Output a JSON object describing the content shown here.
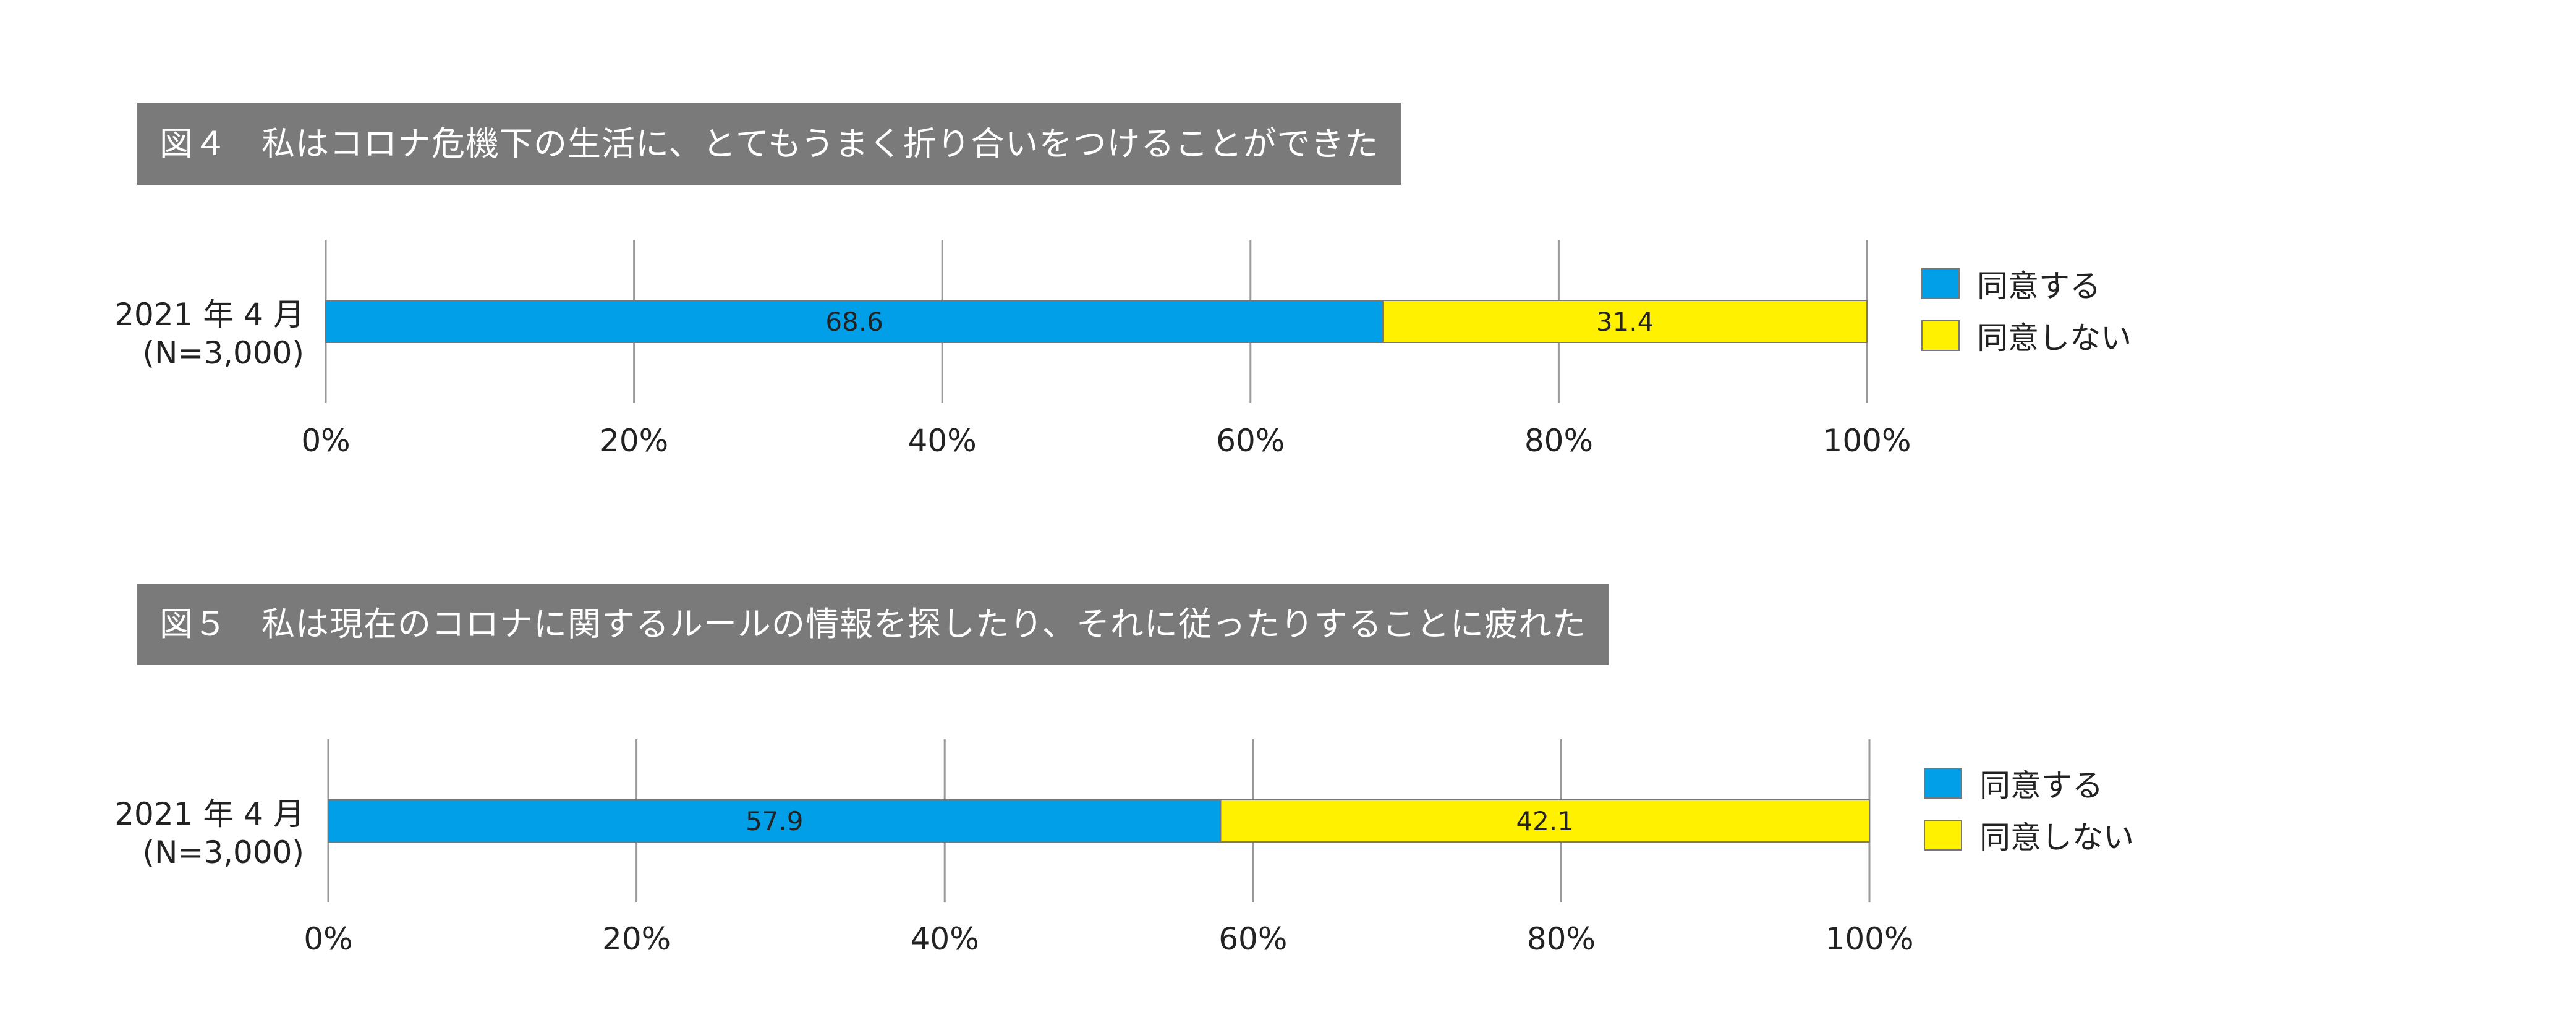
{
  "chart_data": [
    {
      "type": "bar",
      "orientation": "horizontal",
      "stacked": true,
      "title": "図４　私はコロナ危機下の生活に、とてもうまく折り合いをつけることができた",
      "categories": [
        "2021 年 4 月 (N=3,000)"
      ],
      "category_label": {
        "line1": "2021 年 4 月",
        "line2": "(N=3,000)"
      },
      "series": [
        {
          "name": "同意する",
          "values": [
            68.6
          ],
          "color": "#009fe8"
        },
        {
          "name": "同意しない",
          "values": [
            31.4
          ],
          "color": "#fff100"
        }
      ],
      "data_labels": [
        "68.6",
        "31.4"
      ],
      "xlim": [
        0,
        100
      ],
      "xticks": [
        "0%",
        "20%",
        "40%",
        "60%",
        "80%",
        "100%"
      ],
      "grid": true,
      "legend_position": "right"
    },
    {
      "type": "bar",
      "orientation": "horizontal",
      "stacked": true,
      "title": "図５　私は現在のコロナに関するルールの情報を探したり、それに従ったりすることに疲れた",
      "categories": [
        "2021 年 4 月 (N=3,000)"
      ],
      "category_label": {
        "line1": "2021 年 4 月",
        "line2": "(N=3,000)"
      },
      "series": [
        {
          "name": "同意する",
          "values": [
            57.9
          ],
          "color": "#009fe8"
        },
        {
          "name": "同意しない",
          "values": [
            42.1
          ],
          "color": "#fff100"
        }
      ],
      "data_labels": [
        "57.9",
        "42.1"
      ],
      "xlim": [
        0,
        100
      ],
      "xticks": [
        "0%",
        "20%",
        "40%",
        "60%",
        "80%",
        "100%"
      ],
      "grid": true,
      "legend_position": "right"
    }
  ]
}
